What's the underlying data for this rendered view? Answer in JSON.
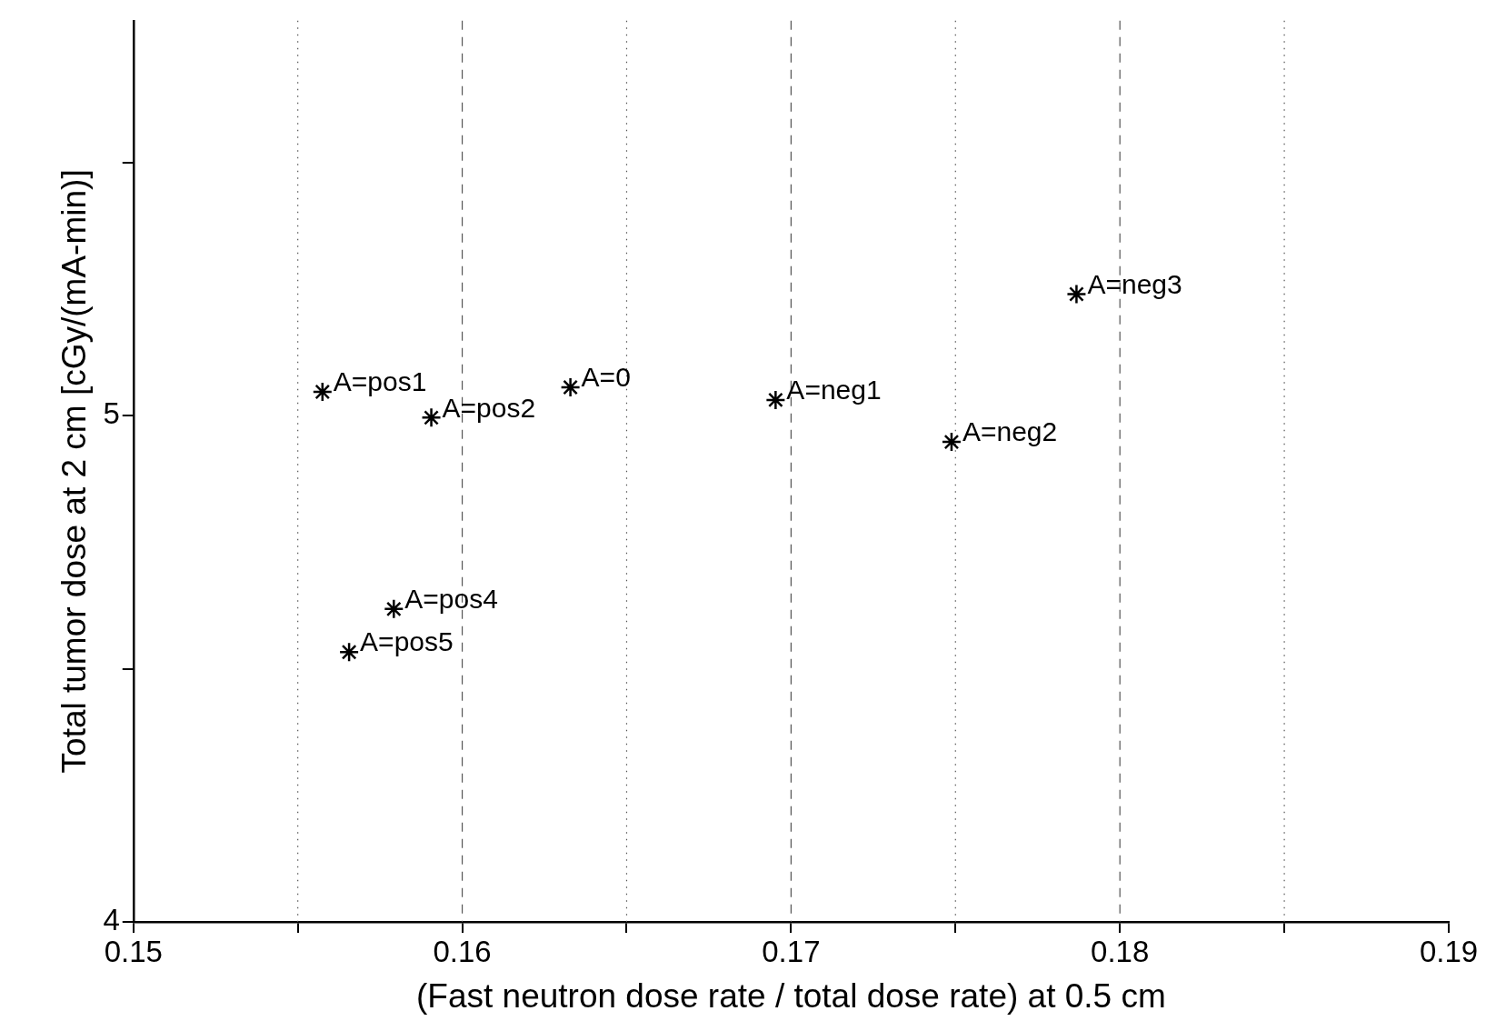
{
  "chart_data": {
    "type": "scatter",
    "xlabel": "(Fast neutron dose rate / total dose rate) at 0.5 cm",
    "ylabel": "Total tumor dose at 2 cm [cGy/(mA-min)]",
    "x": [
      0.15575,
      0.15906,
      0.16329,
      0.16953,
      0.17488,
      0.17868,
      0.15792,
      0.15656
    ],
    "values": [
      5.047,
      4.996,
      5.056,
      5.031,
      4.948,
      5.24,
      4.618,
      4.533
    ],
    "color": "#000000",
    "marker": "cross",
    "grid": "x",
    "xlim": [
      0.15,
      0.19
    ],
    "xticks": [
      0.15,
      {
        "value": 0.155,
        "label": null
      },
      0.16,
      {
        "value": 0.165,
        "label": null
      },
      0.17,
      {
        "value": 0.175,
        "label": null
      },
      0.18,
      {
        "value": 0.185,
        "label": null
      },
      0.19
    ],
    "ylim": [
      4,
      5.78
    ],
    "yticks": [
      4,
      {
        "value": 4.5,
        "label": null
      },
      5,
      {
        "value": 5.5,
        "label": null
      }
    ],
    "annotations": [
      {
        "text": "A=pos1",
        "x": 0.15575,
        "y": 5.047
      },
      {
        "text": "A=pos2",
        "x": 0.15906,
        "y": 4.996
      },
      {
        "text": "A=0",
        "x": 0.16329,
        "y": 5.056
      },
      {
        "text": "A=neg1",
        "x": 0.16953,
        "y": 5.031
      },
      {
        "text": "A=neg2",
        "x": 0.17488,
        "y": 4.948
      },
      {
        "text": "A=neg3",
        "x": 0.17868,
        "y": 5.24
      },
      {
        "text": "A=pos4",
        "x": 0.15792,
        "y": 4.618
      },
      {
        "text": "A=pos5",
        "x": 0.15656,
        "y": 4.533
      }
    ]
  }
}
